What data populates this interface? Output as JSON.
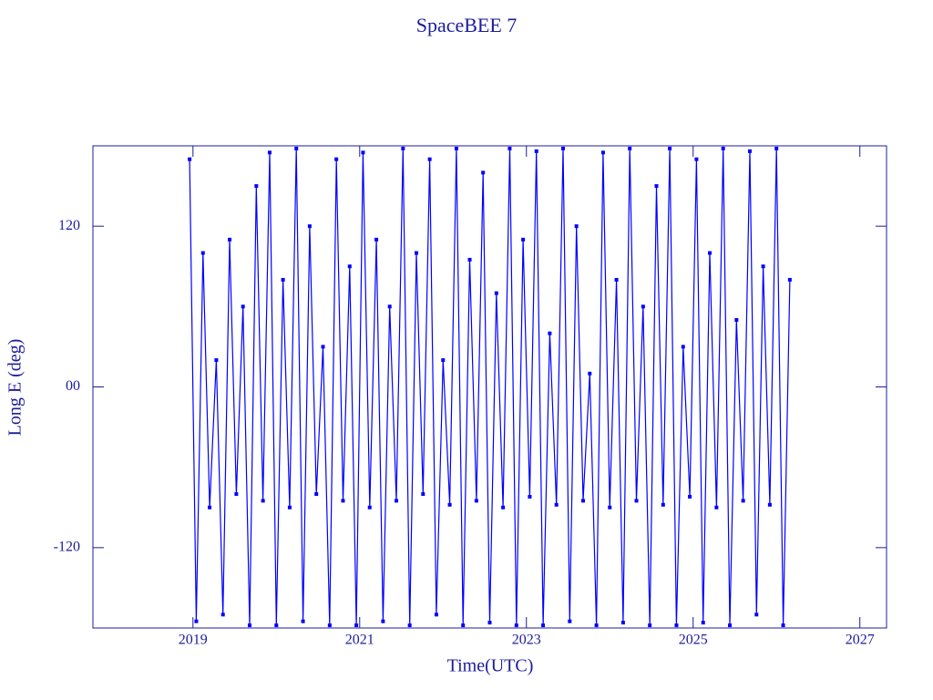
{
  "chart_data": {
    "type": "line",
    "title": "SpaceBEE 7",
    "x_label": "Time(UTC)",
    "y_label": "Long E (deg)",
    "xlim": [
      2017.8,
      2027.32
    ],
    "ylim": [
      -180,
      180
    ],
    "xticks": [
      2019,
      2021,
      2023,
      2025,
      2027
    ],
    "yticks": [
      -120,
      {
        "value": 0,
        "label": "00"
      },
      120
    ],
    "axis_color": "#1c1c9c",
    "series": [
      {
        "color": "#0000ff",
        "x": [
          2018.96,
          2019.04,
          2019.12,
          2019.2,
          2019.28,
          2019.36,
          2019.44,
          2019.52,
          2019.6,
          2019.68,
          2019.76,
          2019.84,
          2019.92,
          2020,
          2020.08,
          2020.16,
          2020.24,
          2020.32,
          2020.4,
          2020.48,
          2020.56,
          2020.64,
          2020.72,
          2020.8,
          2020.88,
          2020.96,
          2021.04,
          2021.12,
          2021.2,
          2021.28,
          2021.36,
          2021.44,
          2021.52,
          2021.6,
          2021.68,
          2021.76,
          2021.84,
          2021.92,
          2022,
          2022.08,
          2022.16,
          2022.24,
          2022.32,
          2022.4,
          2022.48,
          2022.56,
          2022.64,
          2022.72,
          2022.8,
          2022.88,
          2022.96,
          2023.04,
          2023.12,
          2023.2,
          2023.28,
          2023.36,
          2023.44,
          2023.52,
          2023.6,
          2023.68,
          2023.76,
          2023.84,
          2023.92,
          2024,
          2024.08,
          2024.16,
          2024.24,
          2024.32,
          2024.4,
          2024.48,
          2024.56,
          2024.64,
          2024.72,
          2024.8,
          2024.88,
          2024.96,
          2025.04,
          2025.12,
          2025.2,
          2025.28,
          2025.36,
          2025.44,
          2025.52,
          2025.6,
          2025.68,
          2025.76,
          2025.84,
          2025.92,
          2026,
          2026.08,
          2026.16
        ],
        "values": [
          170,
          -175,
          100,
          -90,
          20,
          -170,
          110,
          -80,
          60,
          -178,
          150,
          -85,
          175,
          -178,
          80,
          -90,
          178,
          -175,
          120,
          -80,
          30,
          -178,
          170,
          -85,
          90,
          -178,
          175,
          -90,
          110,
          -175,
          60,
          -85,
          178,
          -178,
          100,
          -80,
          170,
          -170,
          20,
          -88,
          178,
          -178,
          95,
          -85,
          160,
          -176,
          70,
          -90,
          178,
          -178,
          110,
          -82,
          176,
          -178,
          40,
          -88,
          178,
          -175,
          120,
          -85,
          10,
          -178,
          175,
          -90,
          80,
          -176,
          178,
          -85,
          60,
          -178,
          150,
          -88,
          178,
          -178,
          30,
          -82,
          170,
          -176,
          100,
          -90,
          178,
          -178,
          50,
          -85,
          176,
          -170,
          90,
          -88,
          178,
          -178,
          80
        ]
      }
    ]
  }
}
